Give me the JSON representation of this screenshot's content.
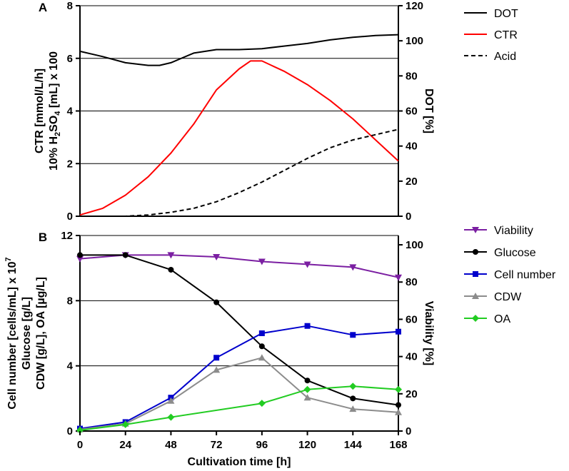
{
  "chart_data": [
    {
      "panel": "A",
      "type": "line",
      "xlabel": "Cultivation time [h]",
      "ylabel_left_line1": "CTR [mmol/L/h]",
      "ylabel_left_line2_pre": "10% H",
      "ylabel_left_line2_sub": "2",
      "ylabel_left_line2_mid": "SO",
      "ylabel_left_line2_sub2": "4",
      "ylabel_left_line2_post": " [mL] x 100",
      "ylabel_right": "DOT [%]",
      "xlim": [
        0,
        168
      ],
      "ylim_left": [
        0,
        8
      ],
      "ylim_right": [
        0,
        120
      ],
      "yticks_left": [
        0,
        2,
        4,
        6,
        8
      ],
      "yticks_right": [
        0,
        20,
        40,
        60,
        80,
        100,
        120
      ],
      "grid": "horizontal",
      "legend": "right",
      "series": [
        {
          "name": "DOT",
          "axis": "right",
          "color": "#000000",
          "style": "solid",
          "x": [
            0,
            12,
            24,
            36,
            42,
            48,
            60,
            72,
            84,
            96,
            108,
            120,
            132,
            144,
            156,
            168
          ],
          "y": [
            94,
            91,
            87.5,
            86,
            86,
            87.5,
            93,
            95,
            95,
            95.5,
            97,
            98.5,
            100.5,
            102,
            103,
            103.5
          ]
        },
        {
          "name": "CTR",
          "axis": "left",
          "color": "#ff0000",
          "style": "solid",
          "x": [
            0,
            12,
            24,
            36,
            48,
            60,
            72,
            84,
            90,
            96,
            108,
            120,
            132,
            144,
            156,
            168
          ],
          "y": [
            0.05,
            0.3,
            0.8,
            1.5,
            2.4,
            3.5,
            4.8,
            5.6,
            5.9,
            5.9,
            5.5,
            5.0,
            4.4,
            3.7,
            2.9,
            2.1
          ]
        },
        {
          "name": "Acid",
          "axis": "left",
          "color": "#000000",
          "style": "dashed",
          "x": [
            0,
            24,
            36,
            48,
            60,
            72,
            84,
            96,
            108,
            120,
            132,
            144,
            156,
            168
          ],
          "y": [
            0,
            0,
            0.05,
            0.15,
            0.3,
            0.55,
            0.9,
            1.3,
            1.75,
            2.2,
            2.6,
            2.9,
            3.1,
            3.3
          ]
        }
      ]
    },
    {
      "panel": "B",
      "type": "line",
      "xlabel": "Cultivation time [h]",
      "ylabel_left_line1_pre": "Cell number [cells/mL] x 10",
      "ylabel_left_line1_sup": "7",
      "ylabel_left_line2": "Glucose [g/L]",
      "ylabel_left_line3": "CDW [g/L], OA [µg/L]",
      "ylabel_right": "Viability [%]",
      "xticks": [
        0,
        24,
        48,
        72,
        96,
        120,
        144,
        168
      ],
      "xlim": [
        0,
        168
      ],
      "ylim_left": [
        0,
        12
      ],
      "ylim_right": [
        0,
        105
      ],
      "yticks_left": [
        0,
        4,
        8,
        12
      ],
      "yticks_right": [
        0,
        20,
        40,
        60,
        80,
        100
      ],
      "grid": "horizontal",
      "legend": "right",
      "series": [
        {
          "name": "Viability",
          "axis": "right",
          "color": "#7b1fa2",
          "marker": "triangle-down",
          "x": [
            0,
            24,
            48,
            72,
            96,
            120,
            144,
            168
          ],
          "y": [
            92.5,
            94.5,
            94.5,
            93.5,
            91,
            89.5,
            88,
            82.5
          ]
        },
        {
          "name": "Glucose",
          "axis": "left",
          "color": "#000000",
          "marker": "circle",
          "x": [
            0,
            24,
            48,
            72,
            96,
            120,
            144,
            168
          ],
          "y": [
            10.8,
            10.8,
            9.9,
            7.9,
            5.2,
            3.1,
            2.0,
            1.6
          ]
        },
        {
          "name": "Cell number",
          "axis": "left",
          "color": "#0000cc",
          "marker": "square",
          "x": [
            0,
            24,
            48,
            72,
            96,
            120,
            144,
            168
          ],
          "y": [
            0.15,
            0.55,
            2.05,
            4.5,
            6.0,
            6.45,
            5.9,
            6.1
          ]
        },
        {
          "name": "CDW",
          "axis": "left",
          "color": "#8c8c8c",
          "marker": "triangle-up",
          "x": [
            0,
            24,
            48,
            72,
            96,
            120,
            144,
            168
          ],
          "y": [
            0.1,
            0.45,
            1.85,
            3.75,
            4.5,
            2.05,
            1.35,
            1.15
          ]
        },
        {
          "name": "OA",
          "axis": "left",
          "color": "#22cc22",
          "marker": "diamond",
          "x": [
            0,
            24,
            48,
            96,
            120,
            144,
            168
          ],
          "y": [
            0.05,
            0.4,
            0.85,
            1.7,
            2.55,
            2.75,
            2.55
          ]
        }
      ]
    }
  ]
}
